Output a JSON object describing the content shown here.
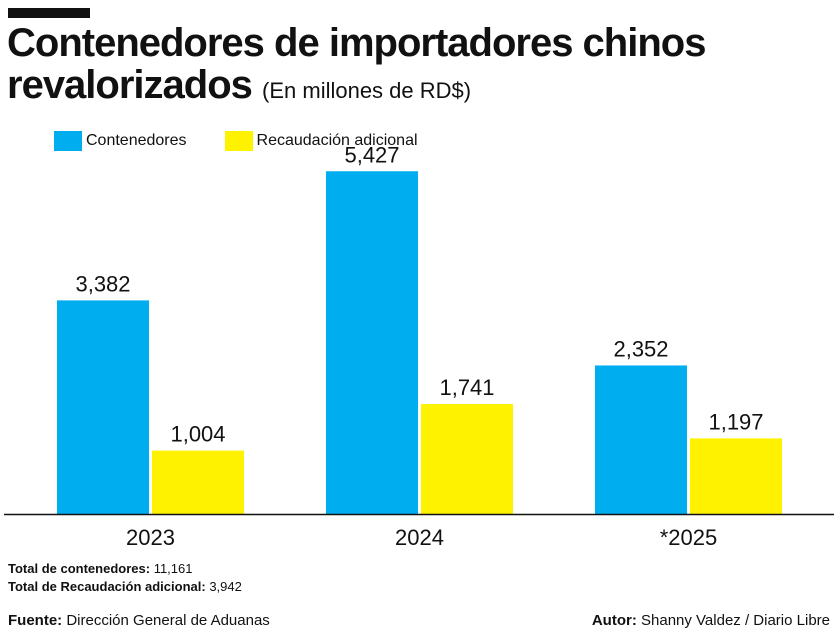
{
  "header": {
    "title": "Contenedores de importadores chinos revalorizados",
    "subtitle": "(En millones de RD$)"
  },
  "colors": {
    "contenedores": "#00aeef",
    "recaudacion": "#fff200",
    "axis": "#111111"
  },
  "chart_data": {
    "type": "bar",
    "categories": [
      "2023",
      "2024",
      "*2025"
    ],
    "series": [
      {
        "name": "Contenedores",
        "values": [
          3382,
          5427,
          2352
        ],
        "labels": [
          "3,382",
          "5,427",
          "2,352"
        ]
      },
      {
        "name": "Recaudación adicional",
        "values": [
          1004,
          1741,
          1197
        ],
        "labels": [
          "1,004",
          "1,741",
          "1,197"
        ]
      }
    ],
    "ylim": [
      0,
      5700
    ],
    "legend": "top-left",
    "grid": false
  },
  "notes": {
    "total_contenedores_label": "Total de contenedores:",
    "total_contenedores_value": "11,161",
    "total_recaudacion_label": "Total de Recaudación adicional:",
    "total_recaudacion_value": "3,942"
  },
  "footer": {
    "source_label": "Fuente:",
    "source_value": "Dirección General de Aduanas",
    "author_label": "Autor:",
    "author_value": "Shanny Valdez / Diario Libre"
  }
}
